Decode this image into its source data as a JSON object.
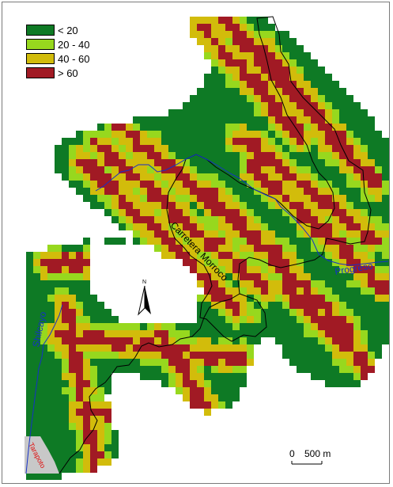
{
  "legend": {
    "items": [
      {
        "label": "< 20",
        "color": "#0e7a25"
      },
      {
        "label": "20 - 40",
        "color": "#97d81e"
      },
      {
        "label": "40 - 60",
        "color": "#d2bc0b"
      },
      {
        "label": "> 60",
        "color": "#a11a24"
      }
    ]
  },
  "labels": {
    "road": "Carretera Morroco",
    "river_west": "Shilcayo",
    "river_east": "Progreso",
    "town": "Tarapoto",
    "north": "N"
  },
  "scale": {
    "zero": "0",
    "distance": "500 m"
  },
  "colors": {
    "river": "#1530c8",
    "boundary": "#000000",
    "town_fill": "#c8c8c8",
    "town_text": "#e01010"
  }
}
